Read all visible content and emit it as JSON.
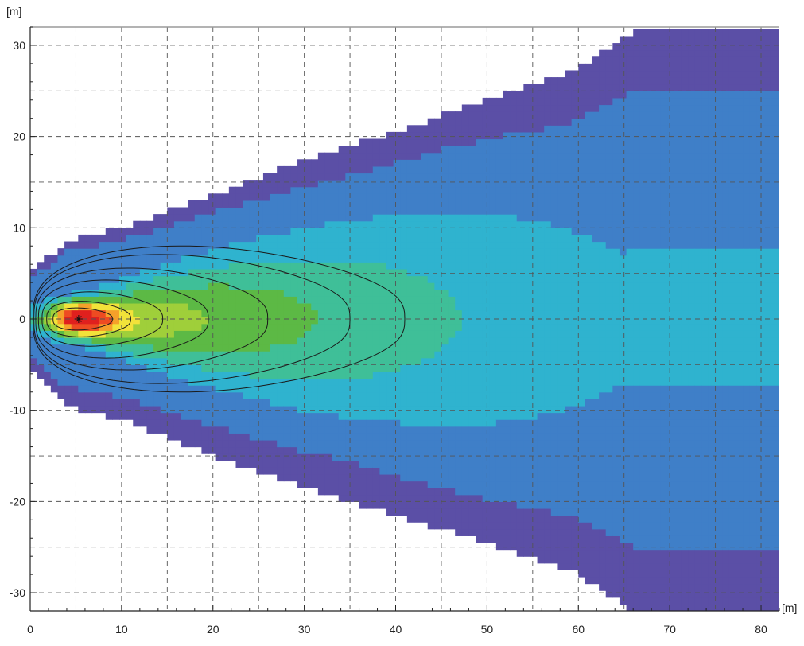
{
  "chart_data": {
    "type": "heatmap",
    "title": "",
    "xlabel": "[m]",
    "ylabel": "[m]",
    "xlim": [
      0,
      82
    ],
    "ylim": [
      -32,
      32
    ],
    "x_ticks": [
      0,
      10,
      20,
      30,
      40,
      50,
      60,
      70,
      80
    ],
    "y_ticks": [
      -30,
      -20,
      -10,
      0,
      10,
      20,
      30
    ],
    "grid": "dashed, every 5 m",
    "source_marker": {
      "x": 5.3,
      "y": 0,
      "symbol": "*"
    },
    "color_bands": [
      "#5b4fa6",
      "#3f7fc8",
      "#2fb3cf",
      "#3fbf98",
      "#5cb945",
      "#9fcf3a",
      "#f2e23a",
      "#f5a02a",
      "#ee4b22",
      "#e0201e"
    ],
    "contour_levels": [
      {
        "x_start": 2.5,
        "x_end": 9.0,
        "half_width": 1.3
      },
      {
        "x_start": 1.8,
        "x_end": 11.0,
        "half_width": 2.1
      },
      {
        "x_start": 1.3,
        "x_end": 14.5,
        "half_width": 3.2
      },
      {
        "x_start": 0.9,
        "x_end": 19.5,
        "half_width": 4.6
      },
      {
        "x_start": 0.6,
        "x_end": 26.0,
        "half_width": 6.0
      },
      {
        "x_start": 0.4,
        "x_end": 35.0,
        "half_width": 7.6
      },
      {
        "x_start": 0.3,
        "x_end": 41.0,
        "half_width": 8.6
      }
    ],
    "spread_boundary": {
      "upper": [
        [
          0,
          5.0
        ],
        [
          4,
          8.5
        ],
        [
          10,
          10.0
        ],
        [
          20,
          13.5
        ],
        [
          30,
          17.5
        ],
        [
          40,
          20.5
        ],
        [
          50,
          24.0
        ],
        [
          60,
          27.5
        ],
        [
          67,
          32.0
        ]
      ],
      "lower": [
        [
          0,
          -5.5
        ],
        [
          4,
          -9.5
        ],
        [
          10,
          -11.0
        ],
        [
          20,
          -15.0
        ],
        [
          30,
          -18.5
        ],
        [
          40,
          -21.5
        ],
        [
          50,
          -24.5
        ],
        [
          60,
          -28.0
        ],
        [
          66,
          -32.0
        ]
      ]
    }
  }
}
